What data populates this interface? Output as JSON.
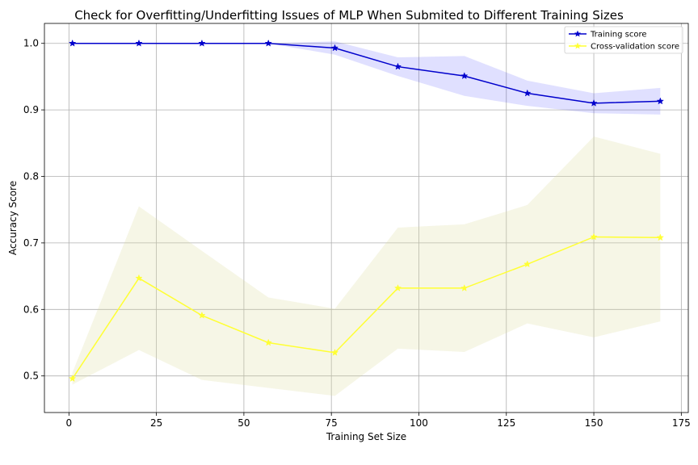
{
  "chart_data": {
    "type": "line",
    "title": "Check for Overfitting/Underfitting Issues of MLP When Submited to Different Training Sizes",
    "xlabel": "Training Set Size",
    "ylabel": "Accuracy Score",
    "xlim": [
      -7,
      177
    ],
    "ylim": [
      0.445,
      1.03
    ],
    "xticks": [
      0,
      25,
      50,
      75,
      100,
      125,
      150,
      175
    ],
    "yticks": [
      0.5,
      0.6,
      0.7,
      0.8,
      0.9,
      1.0
    ],
    "xtick_labels": [
      "0",
      "25",
      "50",
      "75",
      "100",
      "125",
      "150",
      "175"
    ],
    "ytick_labels": [
      "0.5",
      "0.6",
      "0.7",
      "0.8",
      "0.9",
      "1.0"
    ],
    "grid": true,
    "legend_position": "top-right",
    "x": [
      1,
      20,
      38,
      57,
      76,
      94,
      113,
      131,
      150,
      169
    ],
    "series": [
      {
        "name": "Training score",
        "color": "#0000cc",
        "marker": "star",
        "values": [
          1.0,
          1.0,
          1.0,
          1.0,
          0.993,
          0.965,
          0.951,
          0.925,
          0.91,
          0.913
        ],
        "band_lower": [
          1.0,
          1.0,
          1.0,
          1.0,
          0.983,
          0.951,
          0.921,
          0.906,
          0.895,
          0.893
        ],
        "band_upper": [
          1.0,
          1.0,
          1.0,
          1.0,
          1.003,
          0.979,
          0.981,
          0.944,
          0.925,
          0.933
        ],
        "band_color": "#0000ff"
      },
      {
        "name": "Cross-validation score",
        "color": "#ffff33",
        "marker": "star",
        "values": [
          0.496,
          0.647,
          0.591,
          0.55,
          0.535,
          0.632,
          0.632,
          0.668,
          0.709,
          0.708
        ],
        "band_lower": [
          0.487,
          0.539,
          0.494,
          0.482,
          0.47,
          0.541,
          0.536,
          0.579,
          0.558,
          0.582
        ],
        "band_upper": [
          0.505,
          0.755,
          0.688,
          0.618,
          0.601,
          0.723,
          0.728,
          0.757,
          0.86,
          0.834
        ],
        "band_color": "#dcdc9b"
      }
    ]
  }
}
